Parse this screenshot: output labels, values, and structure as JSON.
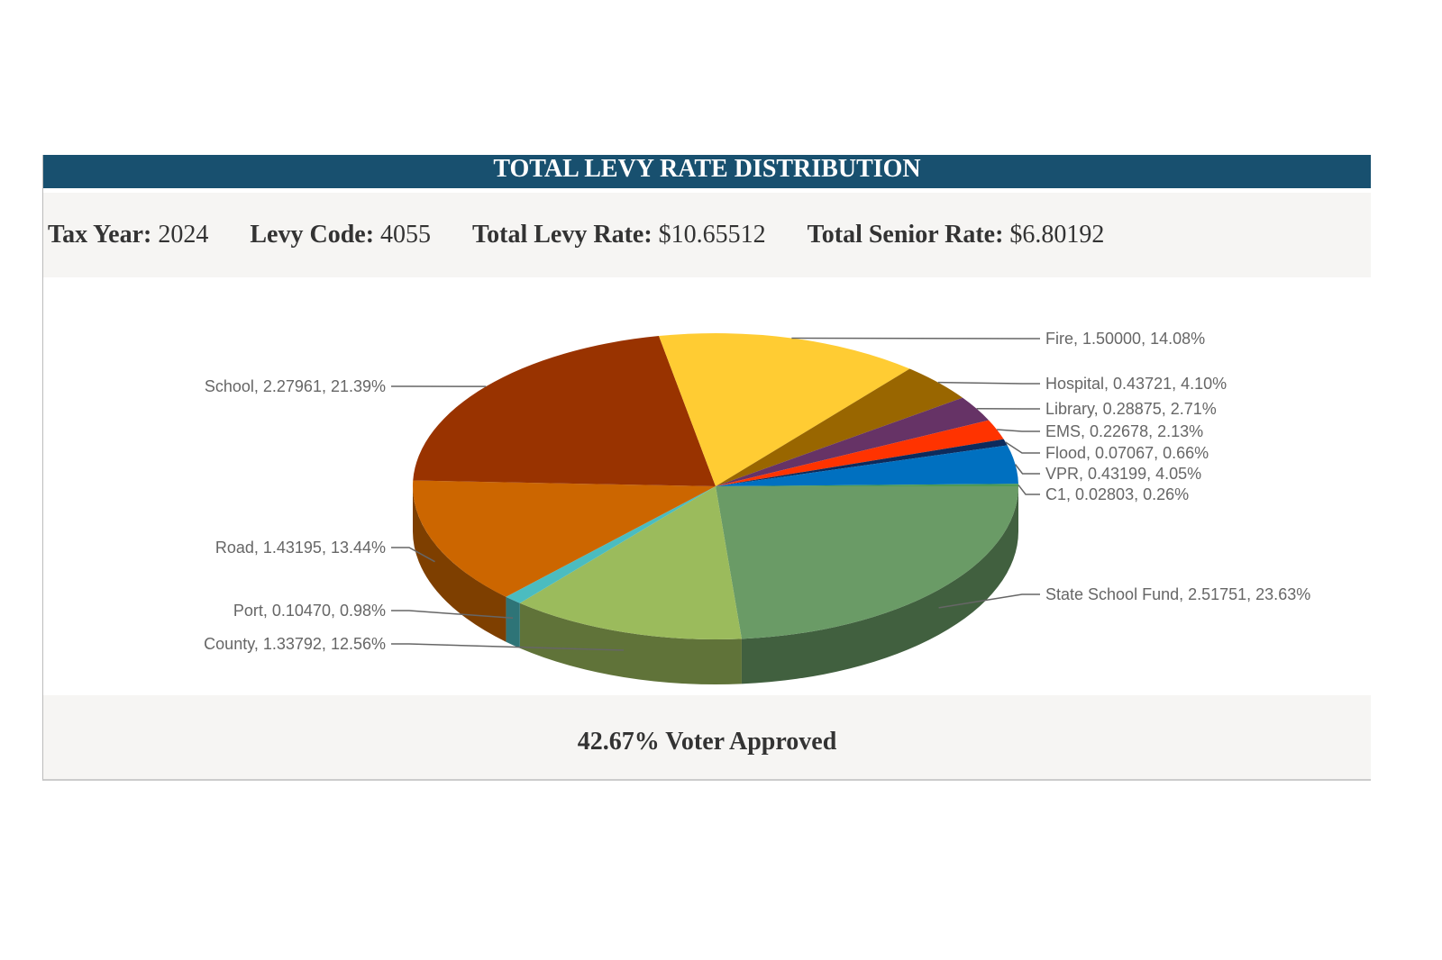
{
  "header": {
    "title": "TOTAL LEVY RATE DISTRIBUTION"
  },
  "info": {
    "tax_year_label": "Tax Year:",
    "tax_year": "2024",
    "levy_code_label": "Levy Code:",
    "levy_code": "4055",
    "total_levy_label": "Total Levy Rate:",
    "total_levy": "$10.65512",
    "senior_label": "Total Senior Rate:",
    "senior": "$6.80192"
  },
  "footer": {
    "voter_approved": "42.67% Voter Approved"
  },
  "chart_data": {
    "type": "pie",
    "style": "3d",
    "slices": [
      {
        "name": "State School Fund",
        "value": 2.51751,
        "percent": 23.63,
        "label": "State School Fund, 2.51751, 23.63%",
        "color": "#6a9b66"
      },
      {
        "name": "County",
        "value": 1.33792,
        "percent": 12.56,
        "label": "County, 1.33792, 12.56%",
        "color": "#9bbb5c"
      },
      {
        "name": "Port",
        "value": 0.1047,
        "percent": 0.98,
        "label": "Port, 0.10470, 0.98%",
        "color": "#4bbcc0"
      },
      {
        "name": "Road",
        "value": 1.43195,
        "percent": 13.44,
        "label": "Road, 1.43195, 13.44%",
        "color": "#cc6600"
      },
      {
        "name": "School",
        "value": 2.27961,
        "percent": 21.39,
        "label": "School, 2.27961, 21.39%",
        "color": "#993300"
      },
      {
        "name": "Fire",
        "value": 1.5,
        "percent": 14.08,
        "label": "Fire, 1.50000, 14.08%",
        "color": "#ffcc33"
      },
      {
        "name": "Hospital",
        "value": 0.43721,
        "percent": 4.1,
        "label": "Hospital, 0.43721, 4.10%",
        "color": "#996600"
      },
      {
        "name": "Library",
        "value": 0.28875,
        "percent": 2.71,
        "label": "Library, 0.28875, 2.71%",
        "color": "#663366"
      },
      {
        "name": "EMS",
        "value": 0.22678,
        "percent": 2.13,
        "label": "EMS, 0.22678, 2.13%",
        "color": "#ff3300"
      },
      {
        "name": "Flood",
        "value": 0.07067,
        "percent": 0.66,
        "label": "Flood, 0.07067, 0.66%",
        "color": "#0d2b5c"
      },
      {
        "name": "VPR",
        "value": 0.43199,
        "percent": 4.05,
        "label": "VPR, 0.43199, 4.05%",
        "color": "#0070c0"
      },
      {
        "name": "C1",
        "value": 0.02803,
        "percent": 0.26,
        "label": "C1, 0.02803, 0.26%",
        "color": "#4f9a55"
      }
    ]
  }
}
